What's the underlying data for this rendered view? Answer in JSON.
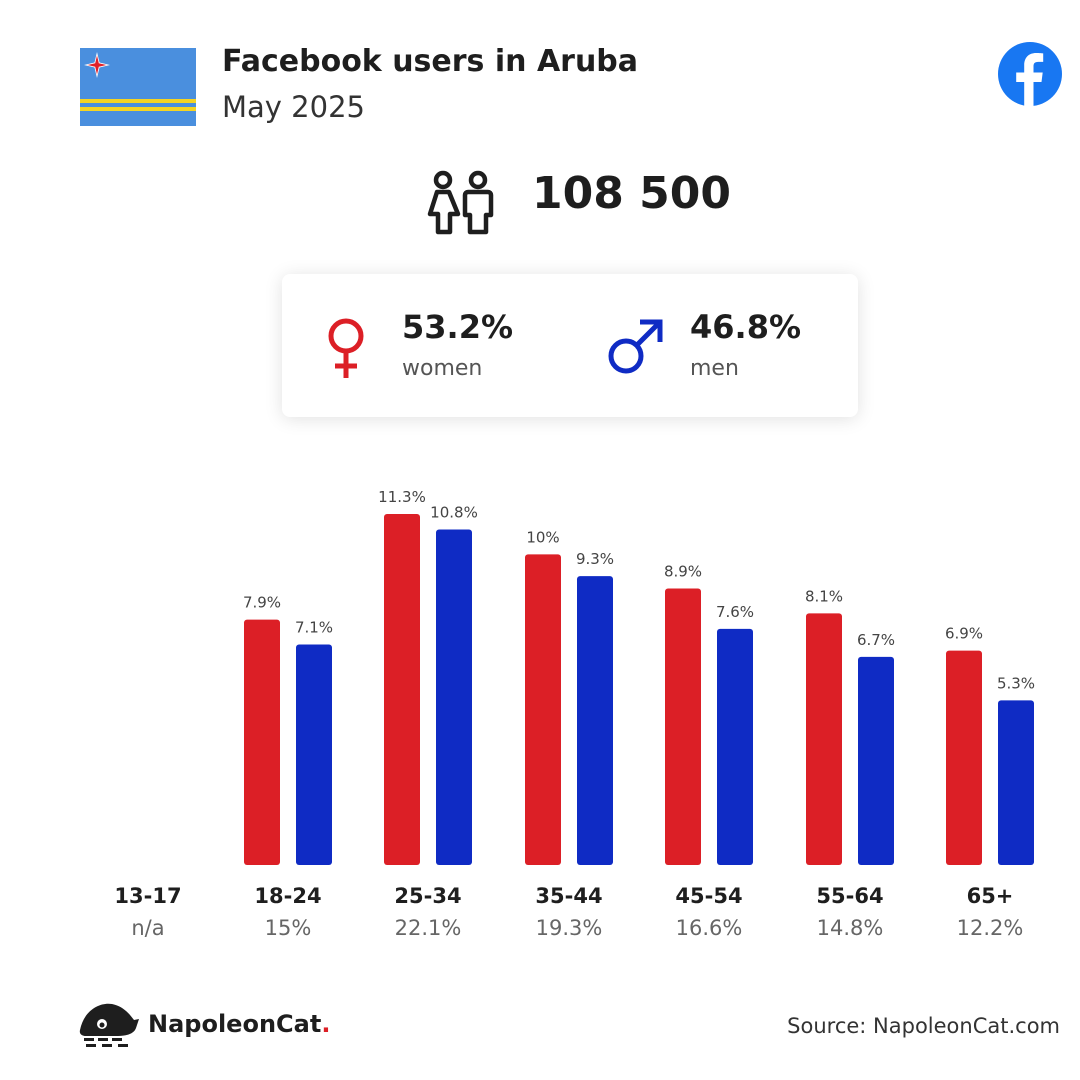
{
  "header": {
    "title": "Facebook users in Aruba",
    "subtitle": "May 2025"
  },
  "total": {
    "value": "108 500"
  },
  "gender": {
    "women": {
      "pct": "53.2%",
      "label": "women",
      "color": "#dc1f26"
    },
    "men": {
      "pct": "46.8%",
      "label": "men",
      "color": "#0f2bc4"
    }
  },
  "age_groups": [
    {
      "name": "13-17",
      "share": "n/a"
    },
    {
      "name": "18-24",
      "share": "15%"
    },
    {
      "name": "25-34",
      "share": "22.1%"
    },
    {
      "name": "35-44",
      "share": "19.3%"
    },
    {
      "name": "45-54",
      "share": "16.6%"
    },
    {
      "name": "55-64",
      "share": "14.8%"
    },
    {
      "name": "65+",
      "share": "12.2%"
    }
  ],
  "chart_data": {
    "type": "bar",
    "categories": [
      "13-17",
      "18-24",
      "25-34",
      "35-44",
      "45-54",
      "55-64",
      "65+"
    ],
    "series": [
      {
        "key": "women",
        "color": "#dc1f26",
        "values": [
          null,
          7.9,
          11.3,
          10,
          8.9,
          8.1,
          6.9
        ],
        "labels": [
          "",
          "7.9%",
          "11.3%",
          "10%",
          "8.9%",
          "8.1%",
          "6.9%"
        ]
      },
      {
        "key": "men",
        "color": "#0f2bc4",
        "values": [
          null,
          7.1,
          10.8,
          9.3,
          7.6,
          6.7,
          5.3
        ],
        "labels": [
          "",
          "7.1%",
          "10.8%",
          "9.3%",
          "7.6%",
          "6.7%",
          "5.3%"
        ]
      }
    ],
    "ylim": [
      0,
      11.3
    ],
    "grid": false
  },
  "branding": {
    "name": "NapoleonCat",
    "dot": "."
  },
  "footer": {
    "source": "Source: NapoleonCat.com"
  },
  "icons": [
    "aruba-flag-icon",
    "facebook-logo-icon",
    "people-icon",
    "female-symbol-icon",
    "male-symbol-icon",
    "napoleoncat-logo-icon"
  ]
}
